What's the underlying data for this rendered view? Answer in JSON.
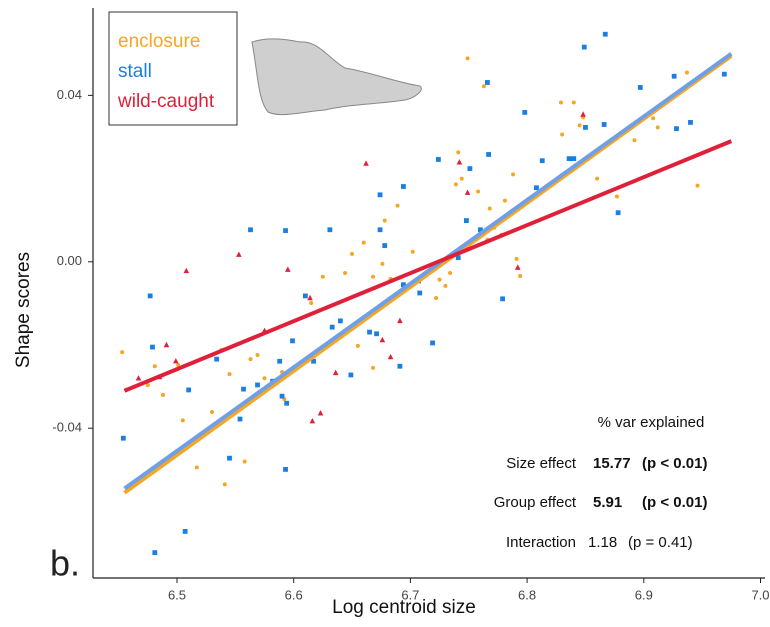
{
  "chart_data": {
    "type": "scatter",
    "panel_label": "b.",
    "x_label": "Log centroid size",
    "y_label": "Shape scores",
    "xlim": [
      6.43,
      7.0
    ],
    "ylim": [
      -0.076,
      0.061
    ],
    "xticks": [
      6.5,
      6.6,
      6.7,
      6.8,
      6.9,
      {
        "value": 7,
        "label": "7.0"
      }
    ],
    "yticks": [
      -0.04,
      {
        "value": 0,
        "label": "0.00"
      },
      0.04
    ],
    "series": [
      {
        "name": "enclosure",
        "color": "#f5a623",
        "marker": "circle",
        "x": [
          6.453,
          6.475,
          6.481,
          6.488,
          6.501,
          6.505,
          6.517,
          6.53,
          6.531,
          6.538,
          6.541,
          6.545,
          6.558,
          6.563,
          6.569,
          6.575,
          6.59,
          6.592,
          6.615,
          6.625,
          6.644,
          6.65,
          6.655,
          6.66,
          6.668,
          6.668,
          6.676,
          6.678,
          6.683,
          6.689,
          6.702,
          6.722,
          6.725,
          6.73,
          6.734,
          6.739,
          6.741,
          6.744,
          6.749,
          6.758,
          6.763,
          6.766,
          6.768,
          6.772,
          6.778,
          6.781,
          6.788,
          6.791,
          6.794,
          6.829,
          6.83,
          6.84,
          6.845,
          6.848,
          6.86,
          6.877,
          6.892,
          6.908,
          6.912,
          6.937,
          6.946
        ],
        "values": [
          -0.0217,
          -0.0296,
          -0.0251,
          -0.032,
          -0.0248,
          -0.0381,
          -0.0494,
          -0.0361,
          -0.0395,
          -0.0212,
          -0.0535,
          -0.027,
          -0.048,
          -0.0234,
          -0.0224,
          -0.028,
          -0.0265,
          -0.033,
          -0.0099,
          -0.0036,
          -0.0027,
          0.0019,
          -0.0202,
          0.0046,
          -0.0255,
          -0.0036,
          -0.0005,
          0.0099,
          -0.0041,
          0.0135,
          0.0024,
          -0.0087,
          -0.0043,
          -0.0058,
          -0.0027,
          0.0186,
          0.0263,
          0.02,
          0.0489,
          0.0169,
          0.0422,
          0.0053,
          0.0128,
          0.0082,
          0.0065,
          0.0147,
          0.021,
          0.0007,
          -0.0034,
          0.0383,
          0.0306,
          0.0383,
          0.0328,
          0.0347,
          0.02,
          0.0157,
          0.0292,
          0.0345,
          0.0323,
          0.0455,
          0.0183
        ]
      },
      {
        "name": "stall",
        "color": "#1a7fe0",
        "marker": "square",
        "x": [
          6.454,
          6.477,
          6.479,
          6.481,
          6.507,
          6.51,
          6.534,
          6.545,
          6.554,
          6.557,
          6.563,
          6.569,
          6.582,
          6.588,
          6.59,
          6.593,
          6.593,
          6.594,
          6.599,
          6.61,
          6.617,
          6.631,
          6.633,
          6.64,
          6.649,
          6.665,
          6.671,
          6.674,
          6.674,
          6.678,
          6.691,
          6.694,
          6.694,
          6.707,
          6.708,
          6.719,
          6.724,
          6.741,
          6.748,
          6.751,
          6.76,
          6.766,
          6.767,
          6.779,
          6.798,
          6.808,
          6.813,
          6.836,
          6.84,
          6.849,
          6.85,
          6.867,
          6.866,
          6.878,
          6.897,
          6.926,
          6.928,
          6.94,
          6.969
        ],
        "values": [
          -0.0424,
          -0.0082,
          -0.0205,
          -0.0699,
          -0.0648,
          -0.0308,
          -0.0234,
          -0.0472,
          -0.0378,
          -0.0306,
          0.0077,
          -0.0296,
          -0.0287,
          -0.0239,
          -0.0323,
          0.0075,
          -0.0499,
          -0.034,
          -0.019,
          -0.0082,
          -0.0239,
          0.0077,
          -0.0157,
          -0.0142,
          -0.0272,
          -0.0169,
          -0.0173,
          0.0161,
          0.0077,
          0.0039,
          -0.0251,
          0.0181,
          -0.0055,
          -0.0046,
          -0.0075,
          -0.0195,
          0.0246,
          0.001,
          0.0099,
          0.0224,
          0.0077,
          0.0431,
          0.0258,
          -0.0089,
          0.0359,
          0.0178,
          0.0243,
          0.0248,
          0.0248,
          0.0516,
          0.0323,
          0.0547,
          0.033,
          0.0118,
          0.0419,
          0.0446,
          0.032,
          0.0335,
          0.0451
        ]
      },
      {
        "name": "wild-caught",
        "color": "#e0203a",
        "marker": "triangle",
        "x": [
          6.467,
          6.485,
          6.491,
          6.499,
          6.508,
          6.553,
          6.575,
          6.595,
          6.614,
          6.616,
          6.623,
          6.636,
          6.662,
          6.676,
          6.683,
          6.691,
          6.742,
          6.749,
          6.792,
          6.848
        ],
        "values": [
          -0.028,
          -0.0277,
          -0.02,
          -0.0239,
          -0.0022,
          0.0017,
          -0.0166,
          -0.0019,
          -0.0087,
          -0.0383,
          -0.0364,
          -0.0267,
          0.0236,
          -0.0188,
          -0.0229,
          -0.0142,
          0.0239,
          0.0166,
          -0.0014,
          0.0354
        ]
      }
    ],
    "fits": [
      {
        "color": "#f5a623",
        "x": [
          6.455,
          6.975
        ],
        "values": [
          -0.0555,
          0.0495
        ]
      },
      {
        "color": "#6f9fe6",
        "x": [
          6.455,
          6.975
        ],
        "values": [
          -0.0545,
          0.05
        ]
      },
      {
        "color": "#e0203a",
        "x": [
          6.455,
          6.975
        ],
        "values": [
          -0.031,
          0.029
        ]
      }
    ],
    "stats": {
      "heading": "% var explained",
      "rows": [
        [
          "Size effect",
          "15.77",
          "(p < 0.01)"
        ],
        [
          "Group effect",
          "5.91",
          "(p < 0.01)"
        ],
        [
          "Interaction",
          "1.18",
          "(p = 0.41)"
        ]
      ]
    }
  }
}
